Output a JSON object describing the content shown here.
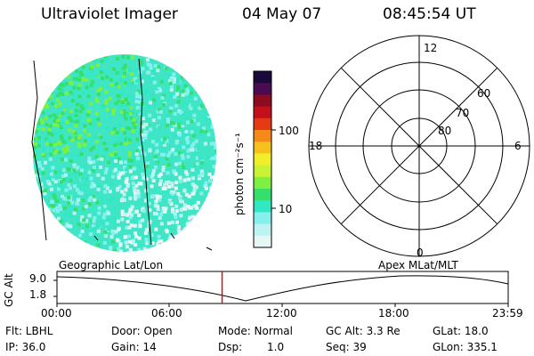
{
  "header": {
    "title": "Ultraviolet Imager",
    "date": "04 May 07",
    "time": "08:45:54 UT"
  },
  "colorbar": {
    "label": "photon cm⁻²s⁻¹",
    "ticks": [
      "100",
      "10"
    ],
    "colors": [
      "#1a0a3c",
      "#4b0b52",
      "#8b0b1f",
      "#c4101a",
      "#e53b14",
      "#f58a1a",
      "#f6c11e",
      "#f2ef2a",
      "#c9f234",
      "#7ff03f",
      "#35e06a",
      "#32e7c3",
      "#86f0ef",
      "#bdf3f2",
      "#e6f6f5"
    ]
  },
  "left_map": {
    "title": "Geographic Lat/Lon"
  },
  "polar_plot": {
    "title": "Apex MLat/MLT",
    "mlt_labels": {
      "top": "12",
      "left": "18",
      "right": "6",
      "bottom": "0"
    },
    "mlat_labels": [
      "60",
      "70",
      "80"
    ]
  },
  "timeline": {
    "ylabel": "GC Alt",
    "yticks": [
      "9.0",
      "1.8"
    ],
    "xticks": [
      "00:00",
      "06:00",
      "12:00",
      "18:00",
      "23:59"
    ],
    "current_time_fraction": 0.366,
    "marker_color": "#d01010"
  },
  "footer": {
    "flt": "Flt: LBHL",
    "door": "Door: Open",
    "mode": "Mode: Normal",
    "gc_alt": "GC Alt: 3.3 Re",
    "glat": "GLat: 18.0",
    "ip": "IP: 36.0",
    "gain": "Gain: 14",
    "dsp_label": "Dsp:",
    "dsp_value": "1.0",
    "seq": "Seq: 39",
    "glon": "GLon: 335.1"
  }
}
